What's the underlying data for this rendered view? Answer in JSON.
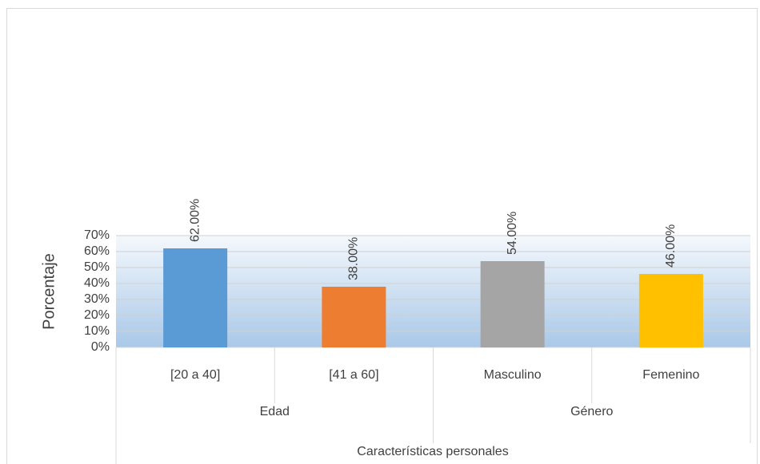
{
  "chart_data": {
    "type": "bar",
    "y_label": "Porcentaje",
    "x_label": "Características personales",
    "categories": [
      "[20 a 40]",
      "[41 a 60]",
      "Masculino",
      "Femenino"
    ],
    "group_labels": [
      "Edad",
      "Género"
    ],
    "values": [
      62,
      38,
      54,
      46
    ],
    "value_labels": [
      "62.00%",
      "38.00%",
      "54.00%",
      "46.00%"
    ],
    "colors": [
      "#5b9bd5",
      "#ed7d31",
      "#a5a5a5",
      "#ffc000"
    ],
    "ylim": [
      0,
      70
    ],
    "yticks": [
      {
        "value": 0,
        "label": "0%"
      },
      {
        "value": 10,
        "label": "10%"
      },
      {
        "value": 20,
        "label": "20%"
      },
      {
        "value": 30,
        "label": "30%"
      },
      {
        "value": 40,
        "label": "40%"
      },
      {
        "value": 50,
        "label": "50%"
      },
      {
        "value": 60,
        "label": "60%"
      },
      {
        "value": 70,
        "label": "70%"
      }
    ],
    "grid": true
  }
}
